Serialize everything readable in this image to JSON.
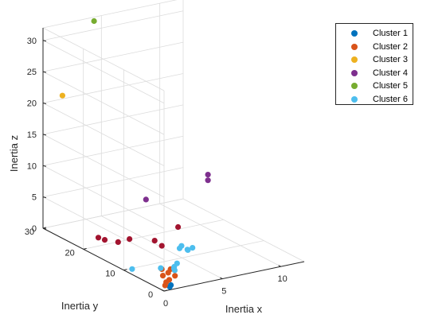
{
  "chart_data": {
    "type": "scatter",
    "projection": "3d",
    "title": "",
    "xlabel": "Inertia x",
    "ylabel": "Inertia y",
    "zlabel": "Inertia z",
    "xlim": [
      0,
      12
    ],
    "ylim": [
      0,
      30
    ],
    "zlim": [
      0,
      32
    ],
    "xticks": [
      "0",
      "5",
      "10"
    ],
    "yticks": [
      "0",
      "10",
      "20",
      "30"
    ],
    "zticks": [
      "0",
      "5",
      "10",
      "15",
      "20",
      "25",
      "30"
    ],
    "grid": true,
    "legend_position": "top-right, outside",
    "series": [
      {
        "name": "Cluster 1",
        "color": "#0072BD",
        "points": [
          [
            0.7,
            0.6,
            0.2
          ],
          [
            0.9,
            0.9,
            0.3
          ]
        ]
      },
      {
        "name": "Cluster 2",
        "color": "#D95319",
        "points": [
          [
            0.5,
            1.2,
            0.3
          ],
          [
            0.8,
            1.8,
            0.5
          ],
          [
            1.2,
            2.2,
            0.6
          ],
          [
            1.0,
            3.2,
            1.0
          ],
          [
            1.6,
            3.6,
            1.1
          ],
          [
            1.8,
            2.5,
            0.9
          ],
          [
            2.0,
            4.2,
            1.3
          ],
          [
            1.4,
            4.6,
            1.4
          ]
        ]
      },
      {
        "name": "Cluster 3",
        "color": "#EDB120",
        "points": [
          [
            0.8,
            27.5,
            21.7
          ]
        ]
      },
      {
        "name": "Cluster 4",
        "color": "#7E2F8E",
        "points": [
          [
            4.5,
            17.5,
            7.0
          ],
          [
            9.8,
            17.5,
            8.0
          ],
          [
            9.8,
            17.5,
            8.9
          ]
        ]
      },
      {
        "name": "Cluster 5",
        "color": "#77AC30",
        "points": [
          [
            4.2,
            29.5,
            31.6
          ]
        ]
      },
      {
        "name": "Cluster 6",
        "color": "#4DBEEE",
        "points": [
          [
            2.2,
            7.2,
            0.4
          ],
          [
            2.8,
            5.6,
            0.9
          ],
          [
            3.6,
            7.2,
            0.6
          ],
          [
            3.1,
            6.5,
            0.2
          ],
          [
            4.8,
            8.0,
            2.0
          ],
          [
            5.2,
            8.0,
            2.2
          ],
          [
            2.5,
            4.6,
            0.8
          ],
          [
            4.2,
            8.3,
            2.4
          ],
          [
            4.6,
            9.0,
            2.4
          ],
          [
            0.2,
            8.5,
            0.6
          ],
          [
            4.9,
            8.4,
            1.9
          ]
        ]
      },
      {
        "name": "",
        "color": "#A2142F",
        "points": [
          [
            1.0,
            17.6,
            1.9
          ],
          [
            0.8,
            18.6,
            2.0
          ],
          [
            1.7,
            16.3,
            1.7
          ],
          [
            2.6,
            16.1,
            1.9
          ],
          [
            6.9,
            16.5,
            2.0
          ],
          [
            4.1,
            14.2,
            1.7
          ],
          [
            4.3,
            13.0,
            1.2
          ]
        ]
      }
    ]
  }
}
